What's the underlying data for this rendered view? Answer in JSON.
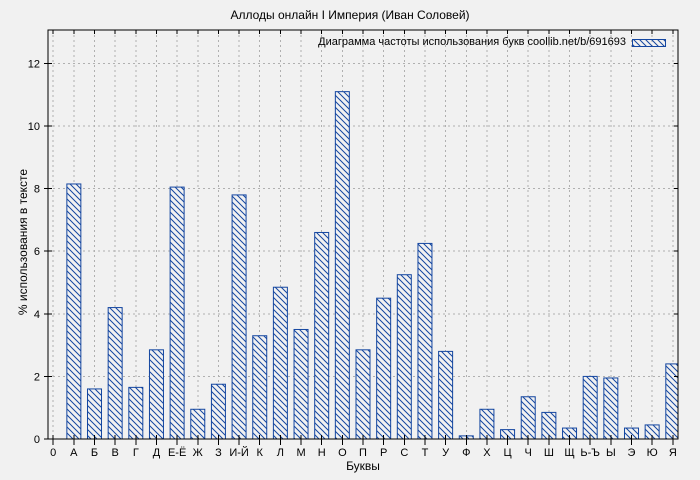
{
  "window": {
    "background": "#f1f1f1"
  },
  "chart_data": {
    "type": "bar",
    "title": "Аллоды онлайн I Империя (Иван Соловей)",
    "legend": "Диаграмма частоты использования букв coollib.net/b/691693",
    "legend_position": "top-right",
    "xlabel": "Буквы",
    "ylabel": "% использования в тексте",
    "categories": [
      "0",
      "А",
      "Б",
      "В",
      "Г",
      "Д",
      "Е-Ё",
      "Ж",
      "З",
      "И-Й",
      "К",
      "Л",
      "М",
      "Н",
      "О",
      "П",
      "Р",
      "С",
      "Т",
      "У",
      "Ф",
      "Х",
      "Ц",
      "Ч",
      "Ш",
      "Щ",
      "Ь-Ъ",
      "Ы",
      "Э",
      "Ю",
      "Я"
    ],
    "values": [
      0,
      8.15,
      1.6,
      4.2,
      1.65,
      2.85,
      8.05,
      0.95,
      1.75,
      7.8,
      3.3,
      4.85,
      3.5,
      6.6,
      11.1,
      2.85,
      4.5,
      5.25,
      6.25,
      2.8,
      0.1,
      0.95,
      0.3,
      1.35,
      0.85,
      0.35,
      2.0,
      1.95,
      0.35,
      0.45,
      2.4
    ],
    "yticks": [
      0,
      2,
      4,
      6,
      8,
      10,
      12
    ],
    "ylim": [
      0,
      13.07
    ],
    "grid": true,
    "hatch": "backslash",
    "bar_color": "#1446a0",
    "bar_fill": "#f1f1f1",
    "grid_color": "#b0b0b0",
    "frame_color": "#000000"
  }
}
